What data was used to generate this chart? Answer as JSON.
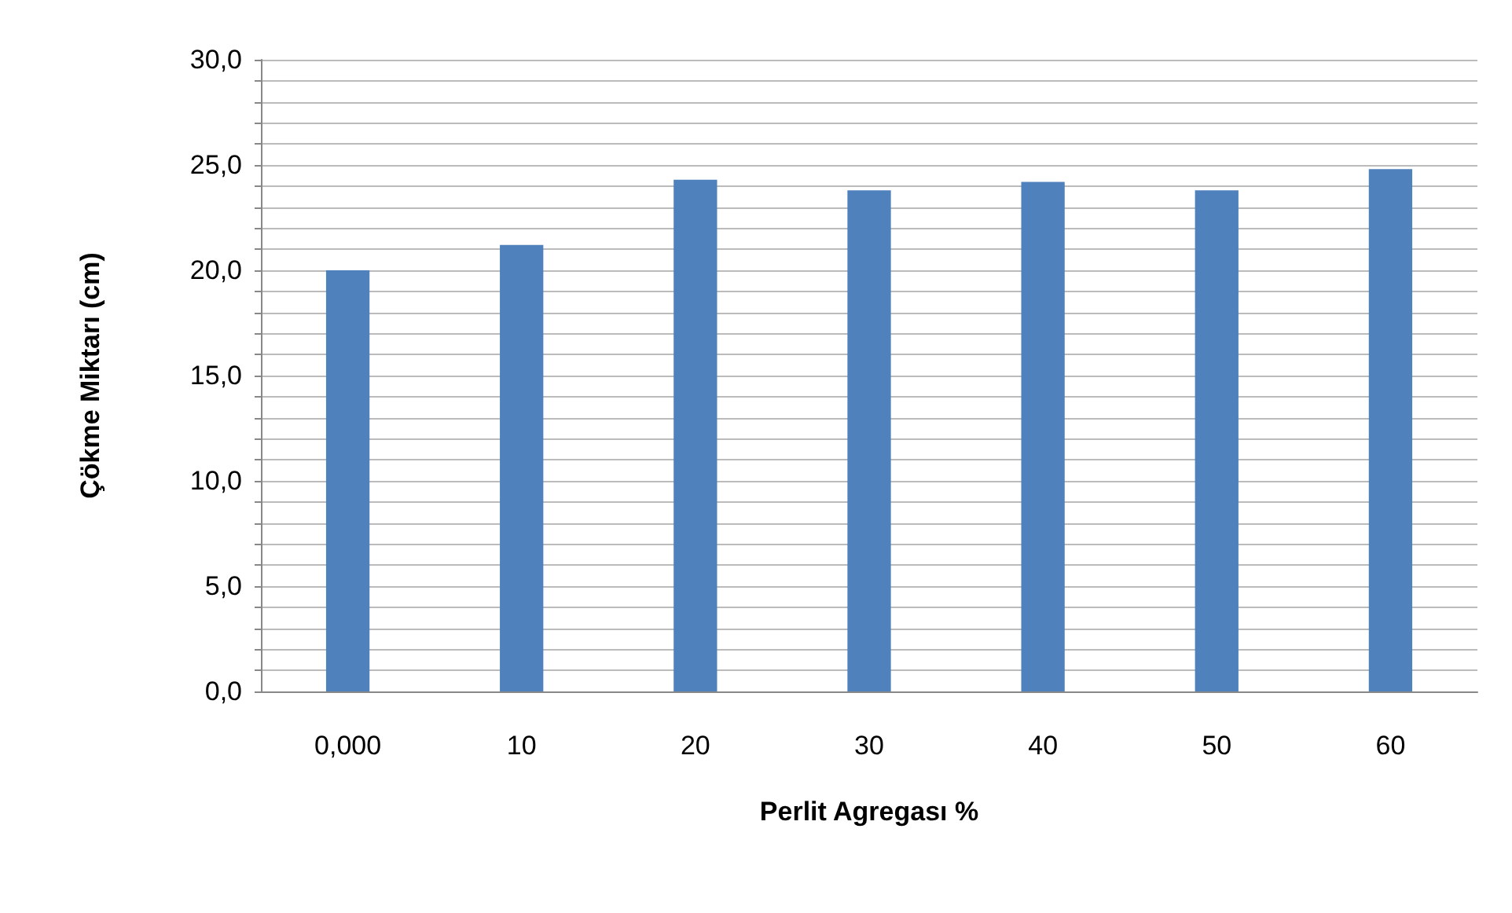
{
  "chart_data": {
    "type": "bar",
    "xlabel": "Perlit Agregası %",
    "ylabel": "Çökme Miktarı (cm)",
    "categories": [
      "0,000",
      "10",
      "20",
      "30",
      "40",
      "50",
      "60"
    ],
    "values": [
      20.0,
      21.2,
      24.3,
      23.8,
      24.2,
      23.8,
      24.8
    ],
    "color": "#4f81bd",
    "ylim": [
      0,
      30
    ],
    "yticks": [
      {
        "value": 0,
        "label": "0,0"
      },
      {
        "value": 1,
        "label": null
      },
      {
        "value": 2,
        "label": null
      },
      {
        "value": 3,
        "label": null
      },
      {
        "value": 4,
        "label": null
      },
      {
        "value": 5,
        "label": "5,0"
      },
      {
        "value": 6,
        "label": null
      },
      {
        "value": 7,
        "label": null
      },
      {
        "value": 8,
        "label": null
      },
      {
        "value": 9,
        "label": null
      },
      {
        "value": 10,
        "label": "10,0"
      },
      {
        "value": 11,
        "label": null
      },
      {
        "value": 12,
        "label": null
      },
      {
        "value": 13,
        "label": null
      },
      {
        "value": 14,
        "label": null
      },
      {
        "value": 15,
        "label": "15,0"
      },
      {
        "value": 16,
        "label": null
      },
      {
        "value": 17,
        "label": null
      },
      {
        "value": 18,
        "label": null
      },
      {
        "value": 19,
        "label": null
      },
      {
        "value": 20,
        "label": "20,0"
      },
      {
        "value": 21,
        "label": null
      },
      {
        "value": 22,
        "label": null
      },
      {
        "value": 23,
        "label": null
      },
      {
        "value": 24,
        "label": null
      },
      {
        "value": 25,
        "label": "25,0"
      },
      {
        "value": 26,
        "label": null
      },
      {
        "value": 27,
        "label": null
      },
      {
        "value": 28,
        "label": null
      },
      {
        "value": 29,
        "label": null
      },
      {
        "value": 30,
        "label": "30,0"
      }
    ],
    "grid": true
  }
}
